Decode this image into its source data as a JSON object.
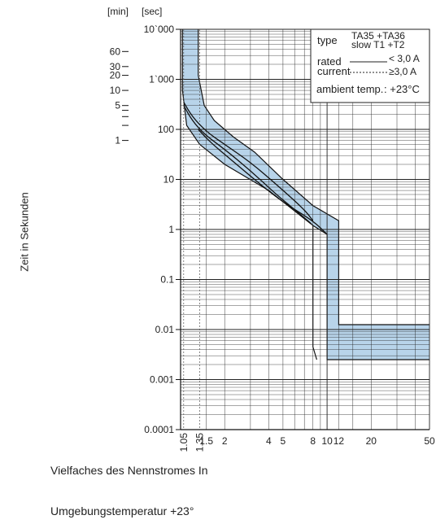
{
  "chart_data": {
    "type": "line",
    "xscale": "log",
    "yscale": "log",
    "xlim": [
      1,
      50
    ],
    "ylim": [
      0.0001,
      10000
    ],
    "grid": true,
    "x_tick_labels": [
      "1.05",
      "1.35",
      "1.5",
      "2",
      "4",
      "5",
      "8",
      "10",
      "12",
      "20",
      "50"
    ],
    "x_tick_values": [
      1.05,
      1.35,
      1.5,
      2,
      4,
      5,
      8,
      10,
      12,
      20,
      50
    ],
    "y_unit_sec": "[sec]",
    "y_unit_min": "[min]",
    "y_tick_labels_sec": [
      "10`000",
      "1`000",
      "100",
      "10",
      "1",
      "0.1",
      "0.01",
      "0.001",
      "0.0001"
    ],
    "y_tick_values_sec": [
      10000,
      1000,
      100,
      10,
      1,
      0.1,
      0.01,
      0.001,
      0.0001
    ],
    "y_tick_labels_min": [
      "60",
      "30",
      "20",
      "10",
      "5",
      "1"
    ],
    "y_tick_values_min": [
      60,
      30,
      20,
      10,
      5,
      1
    ],
    "band": {
      "color": "#b8d4ea",
      "upper": [
        [
          1.32,
          10000
        ],
        [
          1.32,
          1200
        ],
        [
          1.45,
          300
        ],
        [
          1.7,
          150
        ],
        [
          2.3,
          70
        ],
        [
          3.2,
          35
        ],
        [
          5,
          10
        ],
        [
          8,
          3
        ],
        [
          12,
          1.5
        ],
        [
          12,
          0.0125
        ],
        [
          50,
          0.0125
        ]
      ],
      "lower": [
        [
          1.03,
          10000
        ],
        [
          1.03,
          600
        ],
        [
          1.1,
          120
        ],
        [
          1.35,
          50
        ],
        [
          2,
          20
        ],
        [
          4,
          6
        ],
        [
          8,
          1.2
        ],
        [
          10,
          0.8
        ],
        [
          10,
          0.0025
        ],
        [
          50,
          0.0025
        ]
      ],
      "lower_connect": [
        [
          8,
          1.2
        ],
        [
          8,
          0.0045
        ],
        [
          8.5,
          0.0025
        ]
      ],
      "upper_connect": [
        [
          12,
          0.0125
        ],
        [
          12.5,
          0.0125
        ]
      ]
    },
    "curves": [
      {
        "style": "solid",
        "points": [
          [
            1.05,
            300
          ],
          [
            1.2,
            150
          ],
          [
            1.45,
            80
          ],
          [
            2,
            40
          ],
          [
            3,
            15
          ],
          [
            4.5,
            5
          ],
          [
            6,
            2.5
          ],
          [
            7.8,
            1.3
          ]
        ]
      },
      {
        "style": "solid",
        "points": [
          [
            1.05,
            350
          ],
          [
            1.2,
            180
          ],
          [
            1.5,
            90
          ],
          [
            2,
            50
          ],
          [
            3,
            22
          ],
          [
            4.5,
            8
          ],
          [
            7,
            2.5
          ],
          [
            8,
            1.5
          ]
        ]
      },
      {
        "style": "solid",
        "points": [
          [
            1.32,
            100
          ],
          [
            1.6,
            55
          ],
          [
            2.2,
            25
          ],
          [
            3.5,
            8
          ],
          [
            5,
            3.5
          ],
          [
            8,
            1.5
          ],
          [
            10,
            0.8
          ]
        ]
      }
    ],
    "legend": {
      "placement": "top-right",
      "type_label": "type",
      "type_value_1": "TA35 +TA36",
      "type_value_2": "slow T1 +T2",
      "rated_label": "rated",
      "current_label": "current",
      "rated_value_solid": "< 3,0 A",
      "rated_value_dashed": "≥3,0 A",
      "ambient_label": "ambient temp.",
      "ambient_value": ": +23°C"
    },
    "ylabel": "Zeit in Sekunden",
    "xlabel": "Vielfaches des Nennstromes In",
    "footnote": "Umgebungstemperatur +23°"
  }
}
